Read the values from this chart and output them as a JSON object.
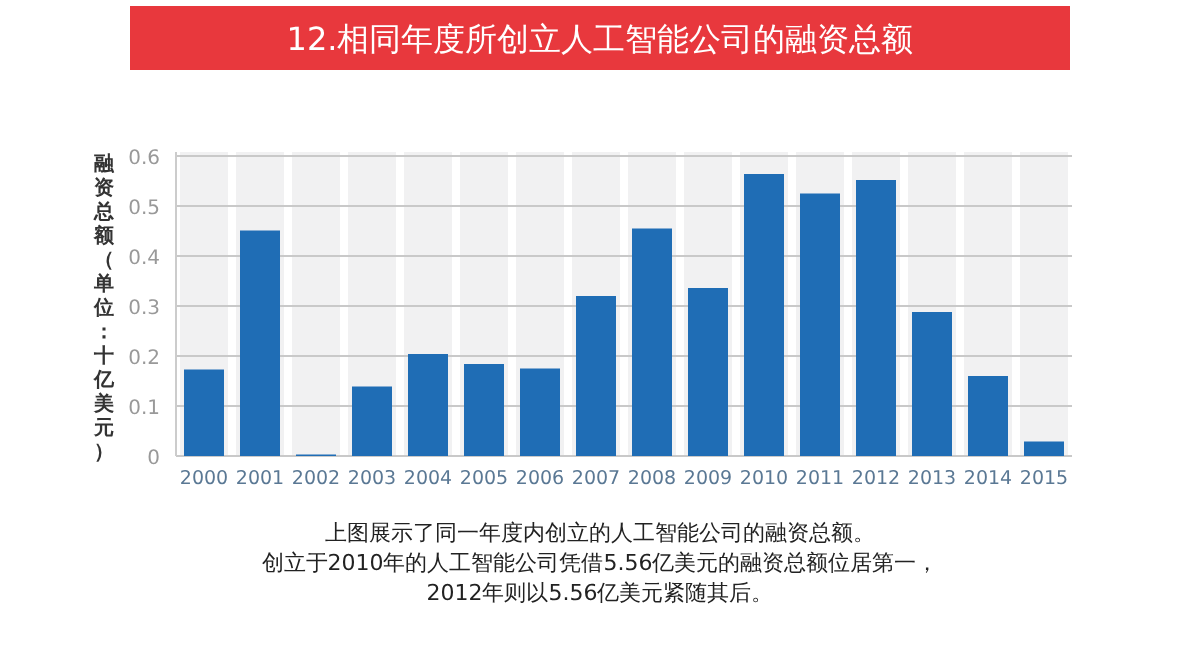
{
  "chart_data": {
    "type": "bar",
    "title": "12.相同年度所创立人工智能公司的融资总额",
    "ylabel": "融资总额（单位：十亿美元）",
    "categories": [
      "2000",
      "2001",
      "2002",
      "2003",
      "2004",
      "2005",
      "2006",
      "2007",
      "2008",
      "2009",
      "2010",
      "2011",
      "2012",
      "2013",
      "2014",
      "2015"
    ],
    "values": [
      0.173,
      0.451,
      0.003,
      0.139,
      0.204,
      0.184,
      0.175,
      0.32,
      0.455,
      0.336,
      0.564,
      0.525,
      0.552,
      0.288,
      0.16,
      0.029
    ],
    "color": "#1f6db5",
    "ylim": [
      0,
      0.6
    ],
    "yticks": [
      0,
      0.1,
      0.2,
      0.3,
      0.4,
      0.5,
      0.6
    ],
    "grid": "y",
    "annotations": [
      "上图展示了同一年度内创立的人工智能公司的融资总额。",
      "创立于2010年的人工智能公司凭借5.56亿美元的融资总额位居第一，",
      "2012年则以5.56亿美元紧随其后。"
    ]
  }
}
